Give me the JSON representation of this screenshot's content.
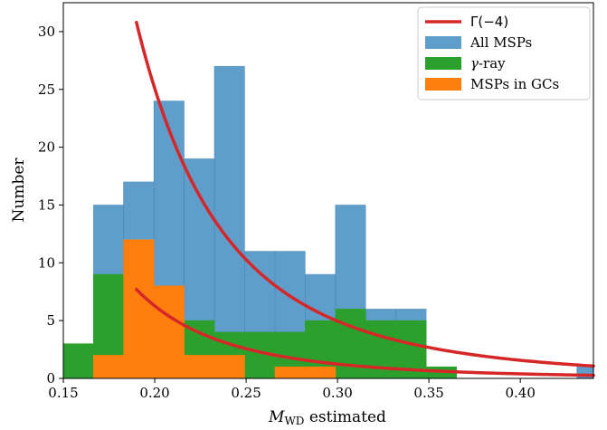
{
  "chart_data": {
    "type": "histogram",
    "xlabel": "M_WD estimated",
    "xlabel_main": "M",
    "xlabel_sub": "WD",
    "xlabel_rest": " estimated",
    "ylabel": "Number",
    "xlim": [
      0.15,
      0.44
    ],
    "ylim": [
      0,
      32.5
    ],
    "xticks": [
      "0.15",
      "0.20",
      "0.25",
      "0.30",
      "0.35",
      "0.40"
    ],
    "xtick_values": [
      0.15,
      0.2,
      0.25,
      0.3,
      0.35,
      0.4
    ],
    "yticks": [
      "0",
      "5",
      "10",
      "15",
      "20",
      "25",
      "30"
    ],
    "ytick_values": [
      0,
      5,
      10,
      15,
      20,
      25,
      30
    ],
    "legend_position": "top-right",
    "histograms": [
      {
        "name": "All MSPs",
        "color": "#5f9ecb",
        "bins": [
          {
            "x0": 0.1665,
            "x1": 0.183,
            "count": 15
          },
          {
            "x0": 0.183,
            "x1": 0.1996,
            "count": 17
          },
          {
            "x0": 0.1996,
            "x1": 0.2161,
            "count": 24
          },
          {
            "x0": 0.2161,
            "x1": 0.2327,
            "count": 19
          },
          {
            "x0": 0.2327,
            "x1": 0.2492,
            "count": 27
          },
          {
            "x0": 0.2492,
            "x1": 0.2658,
            "count": 11
          },
          {
            "x0": 0.2658,
            "x1": 0.2823,
            "count": 11
          },
          {
            "x0": 0.2823,
            "x1": 0.2989,
            "count": 9
          },
          {
            "x0": 0.2989,
            "x1": 0.3154,
            "count": 15
          },
          {
            "x0": 0.3154,
            "x1": 0.332,
            "count": 6
          },
          {
            "x0": 0.332,
            "x1": 0.3485,
            "count": 6
          },
          {
            "x0": 0.431,
            "x1": 0.44,
            "count": 1
          }
        ]
      },
      {
        "name": "γ-ray",
        "legend_prefix": "γ",
        "legend_suffix": "-ray",
        "color": "#2ca02c",
        "bins": [
          {
            "x0": 0.15,
            "x1": 0.1665,
            "count": 3
          },
          {
            "x0": 0.1665,
            "x1": 0.183,
            "count": 9
          },
          {
            "x0": 0.183,
            "x1": 0.1996,
            "count": 9
          },
          {
            "x0": 0.1996,
            "x1": 0.2161,
            "count": 5
          },
          {
            "x0": 0.2161,
            "x1": 0.2327,
            "count": 5
          },
          {
            "x0": 0.2327,
            "x1": 0.2492,
            "count": 4
          },
          {
            "x0": 0.2492,
            "x1": 0.2658,
            "count": 4
          },
          {
            "x0": 0.2658,
            "x1": 0.2823,
            "count": 4
          },
          {
            "x0": 0.2823,
            "x1": 0.2989,
            "count": 5
          },
          {
            "x0": 0.2989,
            "x1": 0.3154,
            "count": 6
          },
          {
            "x0": 0.3154,
            "x1": 0.332,
            "count": 5
          },
          {
            "x0": 0.332,
            "x1": 0.3485,
            "count": 5
          },
          {
            "x0": 0.3485,
            "x1": 0.3651,
            "count": 1
          }
        ]
      },
      {
        "name": "MSPs in GCs",
        "color": "#ff7f0e",
        "bins": [
          {
            "x0": 0.1665,
            "x1": 0.183,
            "count": 2
          },
          {
            "x0": 0.183,
            "x1": 0.1996,
            "count": 12
          },
          {
            "x0": 0.1996,
            "x1": 0.2161,
            "count": 8
          },
          {
            "x0": 0.2161,
            "x1": 0.2327,
            "count": 2
          },
          {
            "x0": 0.2327,
            "x1": 0.2492,
            "count": 2
          },
          {
            "x0": 0.2658,
            "x1": 0.2823,
            "count": 1
          },
          {
            "x0": 0.2823,
            "x1": 0.2989,
            "count": 1
          }
        ]
      }
    ],
    "curves": [
      {
        "name": "Γ(−4)",
        "legend_label": "Γ(−4)",
        "color": "#d62728",
        "x_start": 0.19,
        "y_at_start": 30.8,
        "power": -4
      },
      {
        "name": "Γ(−4) scaled",
        "color": "#d62728",
        "x_start": 0.19,
        "y_at_start": 7.7,
        "power": -4
      }
    ],
    "legend": [
      {
        "label": "Γ(−4)",
        "kind": "line",
        "color": "#d62728"
      },
      {
        "label": "All MSPs",
        "kind": "patch",
        "color": "#5f9ecb"
      },
      {
        "label": "γ-ray",
        "kind": "patch",
        "color": "#2ca02c",
        "italic_prefix": "γ",
        "suffix": "-ray"
      },
      {
        "label": "MSPs in GCs",
        "kind": "patch",
        "color": "#ff7f0e"
      }
    ]
  }
}
